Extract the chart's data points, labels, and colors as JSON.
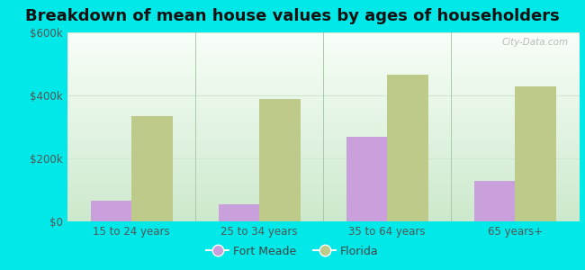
{
  "title": "Breakdown of mean house values by ages of householders",
  "categories": [
    "15 to 24 years",
    "25 to 34 years",
    "35 to 64 years",
    "65 years+"
  ],
  "fort_meade": [
    65000,
    55000,
    270000,
    130000
  ],
  "florida": [
    335000,
    390000,
    465000,
    430000
  ],
  "fort_meade_color": "#c9a0dc",
  "florida_color": "#beca8a",
  "background_color": "#00e8e8",
  "ylim": [
    0,
    600000
  ],
  "yticks": [
    0,
    200000,
    400000,
    600000
  ],
  "ytick_labels": [
    "$0",
    "$200k",
    "$400k",
    "$600k"
  ],
  "legend_fort_meade": "Fort Meade",
  "legend_florida": "Florida",
  "bar_width": 0.32,
  "title_fontsize": 13,
  "watermark": "City-Data.com",
  "grad_top_color": "#f0faf0",
  "grad_bottom_color": "#c8eec8"
}
